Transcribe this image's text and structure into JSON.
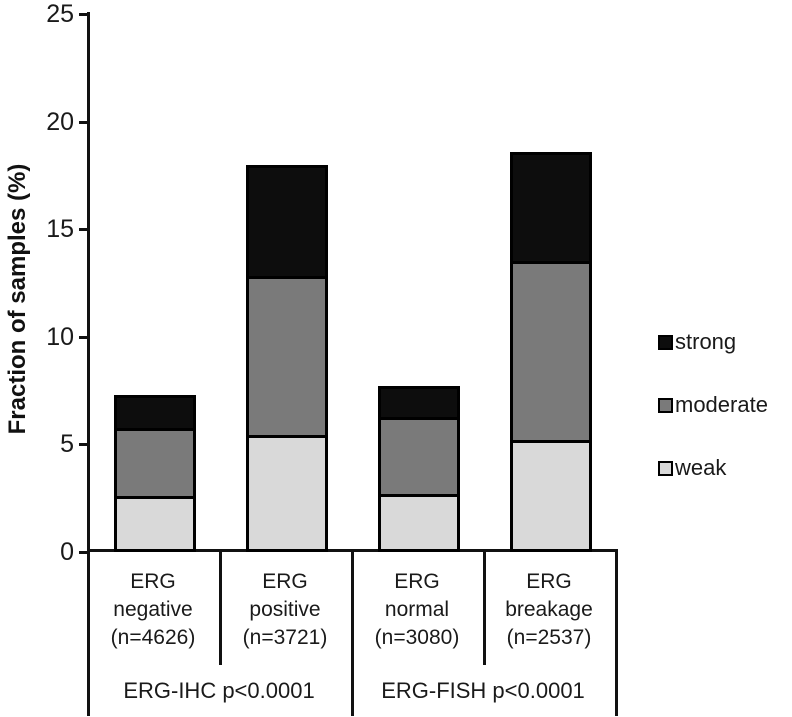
{
  "chart_data": {
    "type": "bar",
    "stacked": true,
    "title": "",
    "ylabel": "Fraction of samples (%)",
    "xlabel": "",
    "ylim": [
      0,
      25
    ],
    "yticks": [
      0,
      5,
      10,
      15,
      20,
      25
    ],
    "grid": false,
    "legend_position": "right",
    "categories": [
      "ERG negative (n=4626)",
      "ERG positive (n=3721)",
      "ERG normal (n=3080)",
      "ERG breakage (n=2537)"
    ],
    "category_lines": [
      [
        "ERG",
        "negative",
        "(n=4626)"
      ],
      [
        "ERG",
        "positive",
        "(n=3721)"
      ],
      [
        "ERG",
        "normal",
        "(n=3080)"
      ],
      [
        "ERG",
        "breakage",
        "(n=2537)"
      ]
    ],
    "series": [
      {
        "name": "weak",
        "color": "#d9d9d9",
        "values": [
          2.5,
          5.3,
          2.6,
          5.1
        ]
      },
      {
        "name": "moderate",
        "color": "#7a7a7a",
        "values": [
          3.3,
          7.5,
          3.7,
          8.4
        ]
      },
      {
        "name": "strong",
        "color": "#0d0d0d",
        "values": [
          1.5,
          5.2,
          1.4,
          5.1
        ]
      }
    ],
    "totals": [
      7.3,
      18.0,
      7.7,
      18.6
    ],
    "legend": [
      {
        "label": "strong",
        "color": "#0d0d0d"
      },
      {
        "label": "moderate",
        "color": "#7a7a7a"
      },
      {
        "label": "weak",
        "color": "#d9d9d9"
      }
    ],
    "group_labels": [
      "ERG-IHC p<0.0001",
      "ERG-FISH p<0.0001"
    ],
    "axis_color": "#111111",
    "bar_border_color": "#000000"
  }
}
